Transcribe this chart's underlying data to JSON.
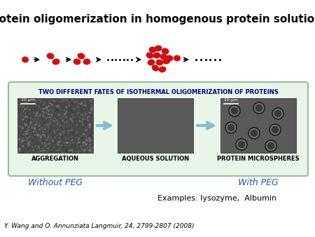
{
  "title": "Protein oligomerization in homogenous protein solutions",
  "bg_color": "#ffffff",
  "red_color": "#cc1111",
  "green_box_facecolor": "#e8f5e8",
  "green_box_edgecolor": "#99bb99",
  "dark_blue_title": "#000077",
  "arrow_color": "#88bbcc",
  "blue_text_color": "#2255aa",
  "box_title": "TWO DIFFERENT FATES OF ISOTHERMAL OLIGOMERIZATION OF PROTEINS",
  "scale_label": "10 μm",
  "aggregation_label": "AGGREGATION",
  "aqueous_label": "AQUEOUS SOLUTION",
  "microspheres_label": "PROTEIN MICROSPHERES",
  "without_peg": "Without PEG",
  "with_peg": "With PEG",
  "examples_text": "Examples: lysozyme,  Albumin",
  "citation_italic_pre": "Y. Wang and O. Annunziata ",
  "citation_journal": "Langmuir",
  "citation_rest": ", 24, 2799-2807 (2008)"
}
